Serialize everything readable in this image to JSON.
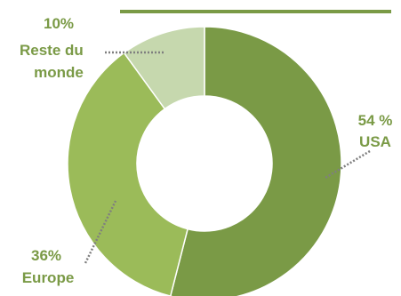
{
  "chart_data": {
    "type": "pie",
    "donut": true,
    "slices": [
      {
        "label_value": "54 %",
        "label_name": "USA",
        "value": 54,
        "color": "#7a9a46"
      },
      {
        "label_value": "36%",
        "label_name": "Europe",
        "value": 36,
        "color": "#9bbb59"
      },
      {
        "label_value": "10%",
        "label_name": "Reste du monde",
        "value": 10,
        "color": "#c6d8ae"
      }
    ],
    "label_color": "#7a9a46",
    "rule_color": "#7a9a46"
  }
}
